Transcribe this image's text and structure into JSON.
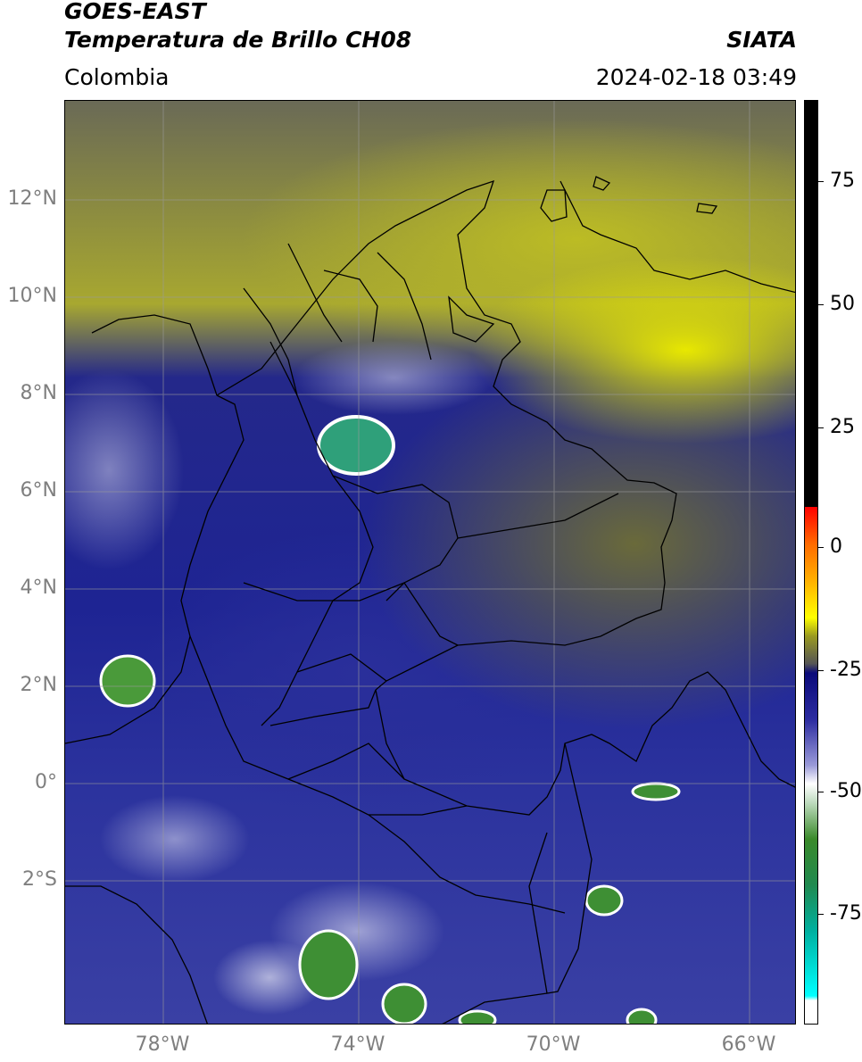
{
  "header": {
    "satellite": "GOES-EAST",
    "product": "Temperatura de Brillo CH08",
    "region": "Colombia",
    "source": "SIATA",
    "datetime": "2024-02-18 03:49"
  },
  "map": {
    "latitude_labels": [
      "12°N",
      "10°N",
      "8°N",
      "6°N",
      "4°N",
      "2°N",
      "0°",
      "2°S"
    ],
    "longitude_labels": [
      "78°W",
      "74°W",
      "70°W",
      "66°W"
    ]
  },
  "colorbar": {
    "labels": [
      "75",
      "50",
      "25",
      "0",
      "-25",
      "-50",
      "-75"
    ]
  }
}
